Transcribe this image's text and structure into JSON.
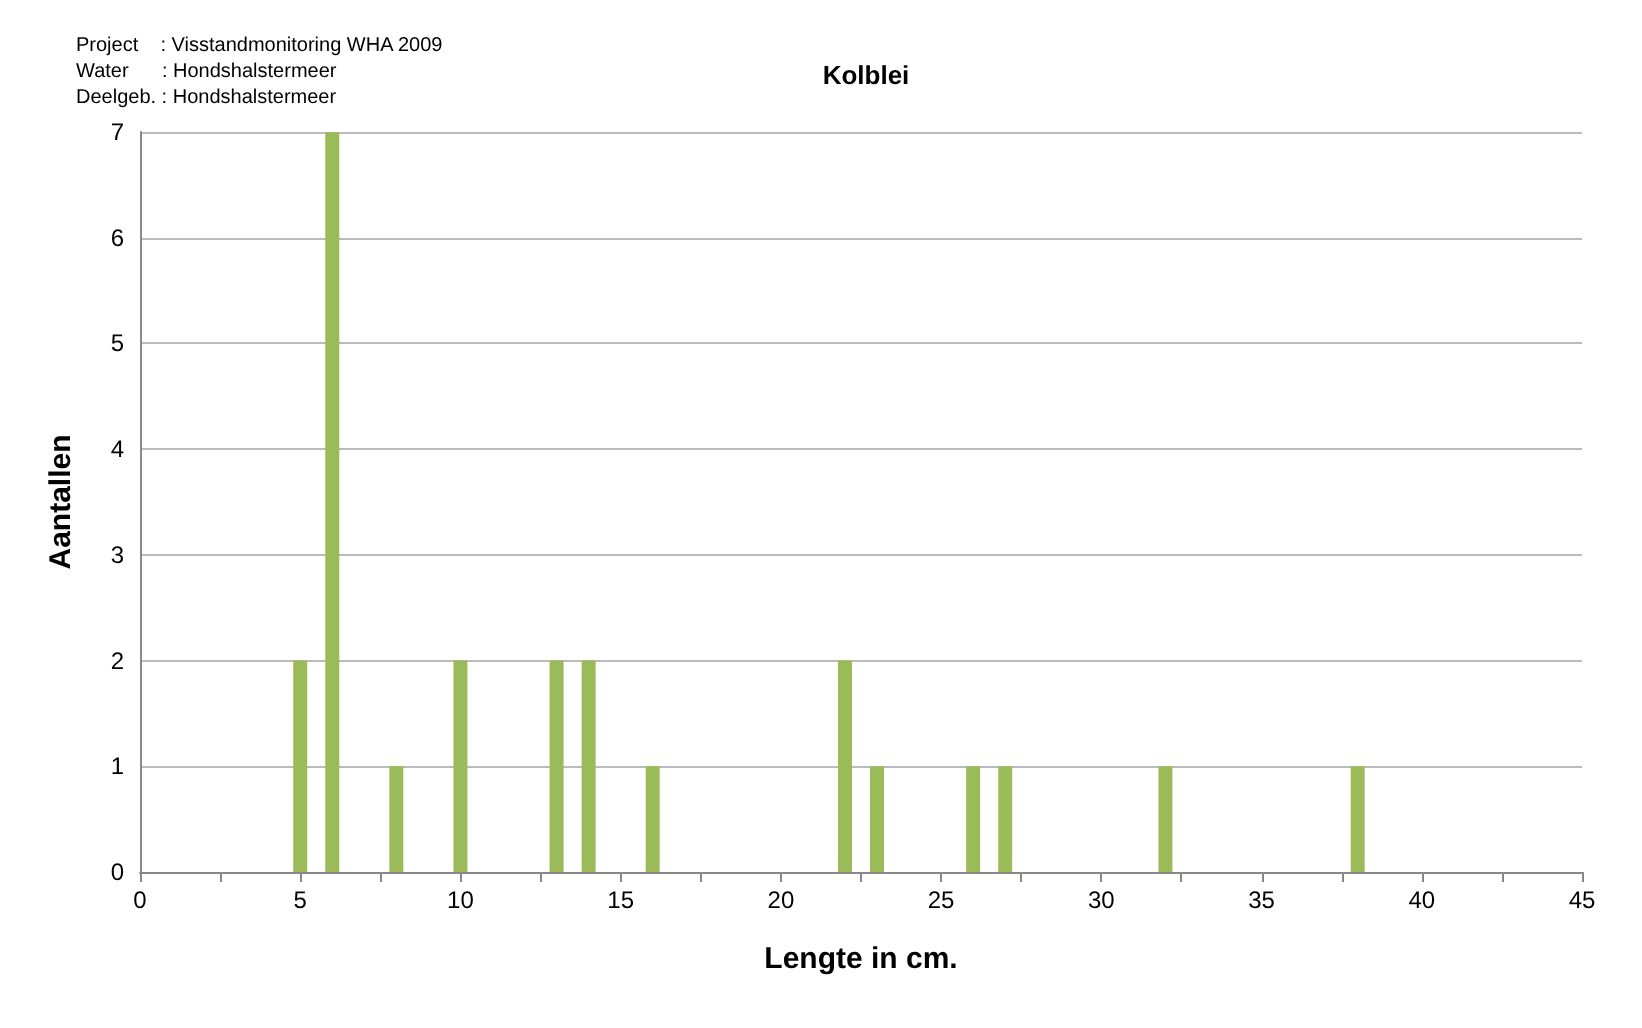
{
  "chart_data": {
    "type": "bar",
    "title": "Kolblei",
    "xlabel": "Lengte in cm.",
    "ylabel": "Aantallen",
    "annotations": [
      "Project    : Visstandmonitoring WHA 2009",
      "Water      : Hondshalstermeer",
      "Deelgeb. : Hondshalstermeer"
    ],
    "x": [
      5,
      6,
      8,
      10,
      13,
      14,
      16,
      22,
      23,
      26,
      27,
      32,
      38
    ],
    "values": [
      2,
      7,
      1,
      2,
      2,
      2,
      1,
      2,
      1,
      1,
      1,
      1,
      1
    ],
    "color": "#9bbb59",
    "xlim": [
      0,
      45
    ],
    "xticks": [
      0,
      {
        "value": 2.5,
        "label": null
      },
      5,
      {
        "value": 7.5,
        "label": null
      },
      10,
      {
        "value": 12.5,
        "label": null
      },
      15,
      {
        "value": 17.5,
        "label": null
      },
      20,
      {
        "value": 22.5,
        "label": null
      },
      25,
      {
        "value": 27.5,
        "label": null
      },
      30,
      {
        "value": 32.5,
        "label": null
      },
      35,
      {
        "value": 37.5,
        "label": null
      },
      40,
      {
        "value": 42.5,
        "label": null
      },
      45
    ],
    "ylim": [
      0,
      7
    ],
    "yticks": [
      0,
      1,
      2,
      3,
      4,
      5,
      6,
      7
    ],
    "grid": "y"
  }
}
